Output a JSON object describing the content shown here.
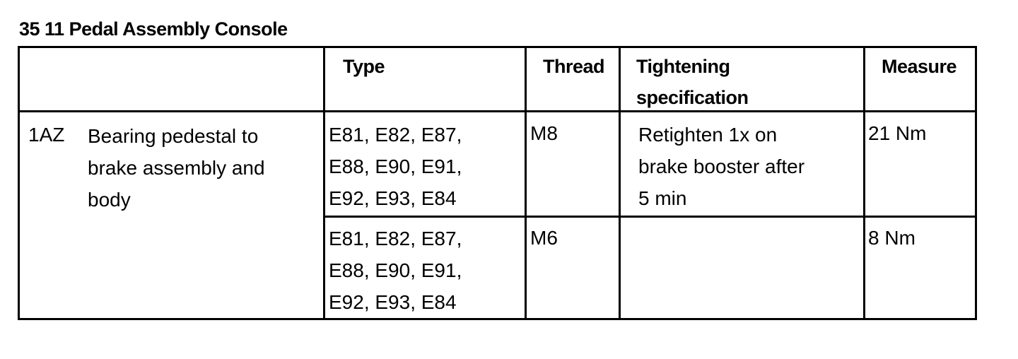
{
  "title": "35 11 Pedal Assembly Console",
  "table": {
    "headers": [
      "",
      "Type",
      "Thread",
      "Tightening specification",
      "Measure"
    ],
    "header_lines": {
      "tightening": [
        "Tightening",
        "specification"
      ]
    },
    "item": {
      "code": "1AZ",
      "description_lines": [
        "Bearing pedestal to",
        "brake assembly and",
        "body"
      ]
    },
    "rows": [
      {
        "type_lines": [
          "E81, E82, E87,",
          "E88, E90, E91,",
          "E92, E93, E84"
        ],
        "thread": "M8",
        "spec_lines": [
          "Retighten 1x on",
          "brake booster after",
          "5 min"
        ],
        "measure": "21 Nm"
      },
      {
        "type_lines": [
          "E81, E82, E87,",
          "E88, E90, E91,",
          "E92, E93, E84"
        ],
        "thread": "M6",
        "spec_lines": [],
        "measure": "8 Nm"
      }
    ]
  }
}
